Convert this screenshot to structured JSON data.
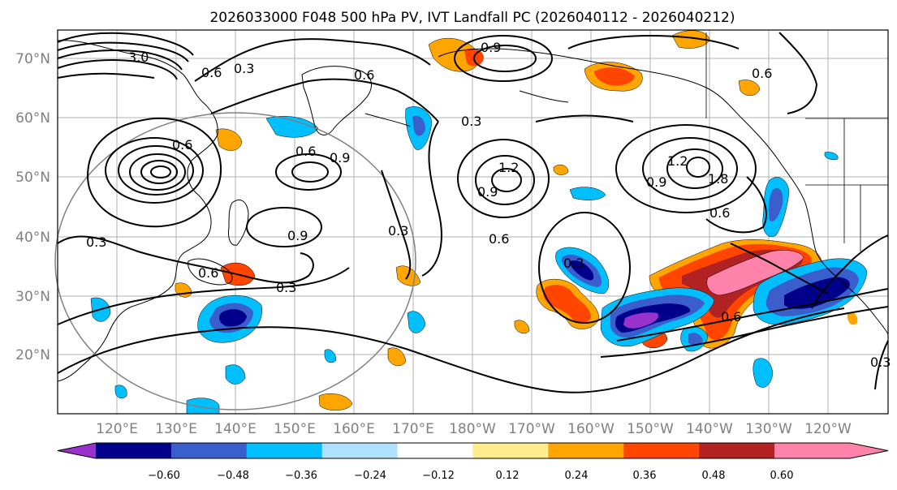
{
  "title": "2026033000 F048 500 hPa PV, IVT Landfall PC (2026040112 - 2026040212)",
  "map": {
    "lat_labels": [
      "70°N",
      "60°N",
      "50°N",
      "40°N",
      "30°N",
      "20°N"
    ],
    "lon_labels": [
      "120°E",
      "130°E",
      "140°E",
      "150°E",
      "160°E",
      "170°E",
      "180°W",
      "170°W",
      "160°W",
      "150°W",
      "140°W",
      "130°W",
      "120°W"
    ],
    "extent_lon": [
      112,
      252
    ],
    "extent_lat": [
      10,
      75
    ],
    "contour_labels": [
      "3.0",
      "0.6",
      "0.3",
      "0.6",
      "0.3",
      "0.6",
      "0.9",
      "0.6",
      "0.9",
      "1.2",
      "1.8",
      "0.6",
      "0.9",
      "1.2",
      "0.6",
      "0.9",
      "0.3",
      "0.6",
      "0.9",
      "0.3",
      "0.6",
      "0.3",
      "0.3",
      "0.6",
      "0.3"
    ]
  },
  "colorbar": {
    "ticks": [
      "−0.60",
      "−0.48",
      "−0.36",
      "−0.24",
      "−0.12",
      "0.12",
      "0.24",
      "0.36",
      "0.48",
      "0.60"
    ],
    "colors": [
      "#9932cc",
      "#00008b",
      "#3a5fcd",
      "#00bfff",
      "#b0e2ff",
      "#ffffff",
      "#ffec8b",
      "#ffa500",
      "#ff4500",
      "#b22222",
      "#ff82ab",
      "#ff82ab"
    ]
  }
}
